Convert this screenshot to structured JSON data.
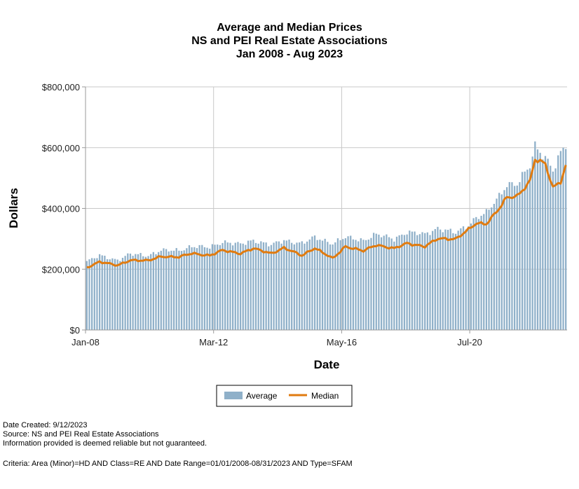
{
  "chart_data": {
    "type": "bar+line",
    "title": [
      "Average and Median Prices",
      "NS and PEI Real Estate Associations",
      "Jan 2008 - Aug 2023"
    ],
    "xlabel": "Date",
    "ylabel": "Dollars",
    "x_start": "2008-01",
    "x_end": "2023-08",
    "x_ticks": [
      "Jan-08",
      "Mar-12",
      "May-16",
      "Jul-20"
    ],
    "y_ticks": [
      "$0",
      "$200,000",
      "$400,000",
      "$600,000",
      "$800,000"
    ],
    "ylim": [
      0,
      800000
    ],
    "grid": true,
    "legend_position": "bottom",
    "series": [
      {
        "name": "Average",
        "kind": "bar",
        "color": "#8fb0c9",
        "anchors": [
          [
            "2008-01",
            225000
          ],
          [
            "2008-06",
            245000
          ],
          [
            "2009-01",
            230000
          ],
          [
            "2009-06",
            250000
          ],
          [
            "2010-01",
            245000
          ],
          [
            "2010-06",
            262000
          ],
          [
            "2011-01",
            262000
          ],
          [
            "2011-06",
            275000
          ],
          [
            "2012-01",
            272000
          ],
          [
            "2012-06",
            290000
          ],
          [
            "2013-01",
            282000
          ],
          [
            "2013-06",
            295000
          ],
          [
            "2014-01",
            280000
          ],
          [
            "2014-06",
            295000
          ],
          [
            "2015-01",
            285000
          ],
          [
            "2015-06",
            305000
          ],
          [
            "2016-01",
            285000
          ],
          [
            "2016-06",
            305000
          ],
          [
            "2017-01",
            295000
          ],
          [
            "2017-06",
            315000
          ],
          [
            "2018-01",
            300000
          ],
          [
            "2018-06",
            322000
          ],
          [
            "2019-01",
            315000
          ],
          [
            "2019-06",
            335000
          ],
          [
            "2020-01",
            320000
          ],
          [
            "2020-06",
            345000
          ],
          [
            "2020-09",
            370000
          ],
          [
            "2021-01",
            385000
          ],
          [
            "2021-06",
            440000
          ],
          [
            "2021-09",
            480000
          ],
          [
            "2022-01",
            480000
          ],
          [
            "2022-06",
            540000
          ],
          [
            "2022-08",
            605000
          ],
          [
            "2022-12",
            570000
          ],
          [
            "2023-03",
            525000
          ],
          [
            "2023-06",
            580000
          ],
          [
            "2023-08",
            605000
          ]
        ]
      },
      {
        "name": "Median",
        "kind": "line",
        "color": "#e07b10",
        "anchors": [
          [
            "2008-01",
            205000
          ],
          [
            "2008-06",
            225000
          ],
          [
            "2009-01",
            212000
          ],
          [
            "2009-06",
            230000
          ],
          [
            "2010-01",
            228000
          ],
          [
            "2010-06",
            242000
          ],
          [
            "2011-01",
            240000
          ],
          [
            "2011-06",
            252000
          ],
          [
            "2012-01",
            245000
          ],
          [
            "2012-06",
            262000
          ],
          [
            "2013-01",
            252000
          ],
          [
            "2013-06",
            268000
          ],
          [
            "2014-01",
            252000
          ],
          [
            "2014-06",
            270000
          ],
          [
            "2015-01",
            245000
          ],
          [
            "2015-06",
            270000
          ],
          [
            "2016-01",
            235000
          ],
          [
            "2016-06",
            275000
          ],
          [
            "2017-01",
            260000
          ],
          [
            "2017-06",
            280000
          ],
          [
            "2018-01",
            268000
          ],
          [
            "2018-06",
            285000
          ],
          [
            "2019-01",
            275000
          ],
          [
            "2019-06",
            300000
          ],
          [
            "2020-01",
            300000
          ],
          [
            "2020-06",
            330000
          ],
          [
            "2020-09",
            350000
          ],
          [
            "2021-01",
            350000
          ],
          [
            "2021-06",
            400000
          ],
          [
            "2021-09",
            435000
          ],
          [
            "2022-01",
            440000
          ],
          [
            "2022-06",
            490000
          ],
          [
            "2022-08",
            562000
          ],
          [
            "2022-12",
            545000
          ],
          [
            "2023-03",
            468000
          ],
          [
            "2023-06",
            490000
          ],
          [
            "2023-08",
            540000
          ]
        ]
      }
    ]
  },
  "footer": {
    "date_created": "Date Created: 9/12/2023",
    "source": "Source: NS and PEI Real Estate Associations",
    "disclaimer": "Information provided is deemed reliable but not guaranteed.",
    "criteria": "Criteria: Area (Minor)=HD AND Class=RE AND Date Range=01/01/2008-08/31/2023 AND Type=SFAM"
  }
}
